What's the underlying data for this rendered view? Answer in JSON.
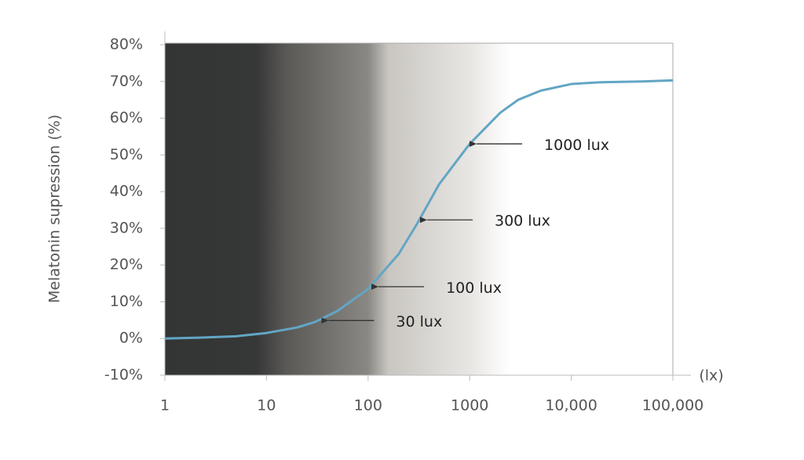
{
  "chart_data": {
    "type": "line",
    "x_label": "(lx)",
    "y_label": "Melatonin supression (%)",
    "xscale": "log",
    "xlim": [
      1,
      100000
    ],
    "ylim": [
      -10,
      80
    ],
    "xticks": [
      1,
      10,
      100,
      1000,
      {
        "value": 10000,
        "label": "10,000"
      },
      {
        "value": 100000,
        "label": "100,000"
      }
    ],
    "yticks": [
      {
        "value": -10,
        "label": "-10%"
      },
      {
        "value": 0,
        "label": "0%"
      },
      {
        "value": 10,
        "label": "10%"
      },
      {
        "value": 20,
        "label": "20%"
      },
      {
        "value": 30,
        "label": "30%"
      },
      {
        "value": 40,
        "label": "40%"
      },
      {
        "value": 50,
        "label": "50%"
      },
      {
        "value": 60,
        "label": "60%"
      },
      {
        "value": 70,
        "label": "70%"
      },
      {
        "value": 80,
        "label": "80%"
      }
    ],
    "grid": false,
    "series": [
      {
        "color": "#62a6c4",
        "x": [
          1,
          2,
          5,
          10,
          20,
          30,
          50,
          100,
          200,
          300,
          500,
          1000,
          2000,
          3000,
          5000,
          10000,
          20000,
          50000,
          100000
        ],
        "values": [
          0,
          0.2,
          0.6,
          1.5,
          3,
          4.5,
          7.5,
          13.5,
          23,
          31,
          42,
          53,
          61.5,
          65,
          67.5,
          69.3,
          69.8,
          70,
          70.3
        ]
      }
    ],
    "annotations": [
      {
        "text": "30 lux",
        "x": 38,
        "y": 4.9
      },
      {
        "text": "100 lux",
        "x": 118,
        "y": 14.1
      },
      {
        "text": "300 lux",
        "x": 355,
        "y": 32.3
      },
      {
        "text": "1000 lux",
        "x": 1090,
        "y": 53
      }
    ]
  }
}
